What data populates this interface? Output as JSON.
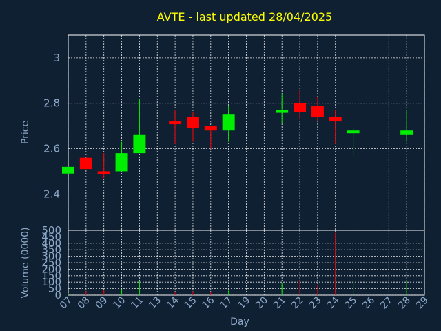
{
  "chart_data": {
    "type": "candlestick",
    "title": "AVTE - last updated 28/04/2025",
    "xlabel": "Day",
    "ylabel_price": "Price",
    "ylabel_volume": "Volume (0000)",
    "x_ticks": [
      "07",
      "08",
      "09",
      "10",
      "11",
      "13",
      "14",
      "15",
      "16",
      "17",
      "19",
      "20",
      "21",
      "22",
      "23",
      "24",
      "25",
      "26",
      "27",
      "28",
      "29"
    ],
    "price_ylim": [
      2.24,
      3.1
    ],
    "price_ticks": [
      2.4,
      2.6,
      2.8,
      3
    ],
    "volume_ylim": [
      0,
      500
    ],
    "volume_ticks": [
      0,
      50,
      100,
      150,
      200,
      250,
      300,
      350,
      400,
      450,
      500
    ],
    "colors": {
      "up": "#00ee00",
      "down": "#ff0000",
      "background": "#0f2033",
      "frame": "#ffffff",
      "title": "#ffff00",
      "label": "#8ea8c8"
    },
    "candles": [
      {
        "day": "07",
        "open": 2.49,
        "high": 2.52,
        "low": 2.49,
        "close": 2.52,
        "volume": 15
      },
      {
        "day": "08",
        "open": 2.56,
        "high": 2.56,
        "low": 2.51,
        "close": 2.51,
        "volume": 30
      },
      {
        "day": "09",
        "open": 2.5,
        "high": 2.58,
        "low": 2.47,
        "close": 2.49,
        "volume": 40
      },
      {
        "day": "10",
        "open": 2.5,
        "high": 2.63,
        "low": 2.5,
        "close": 2.58,
        "volume": 45
      },
      {
        "day": "11",
        "open": 2.58,
        "high": 2.82,
        "low": 2.58,
        "close": 2.66,
        "volume": 110
      },
      {
        "day": "14",
        "open": 2.72,
        "high": 2.77,
        "low": 2.62,
        "close": 2.71,
        "volume": 20
      },
      {
        "day": "15",
        "open": 2.74,
        "high": 2.76,
        "low": 2.63,
        "close": 2.69,
        "volume": 30
      },
      {
        "day": "16",
        "open": 2.7,
        "high": 2.7,
        "low": 2.6,
        "close": 2.68,
        "volume": 25
      },
      {
        "day": "17",
        "open": 2.68,
        "high": 2.79,
        "low": 2.63,
        "close": 2.75,
        "volume": 35
      },
      {
        "day": "21",
        "open": 2.76,
        "high": 2.84,
        "low": 2.71,
        "close": 2.77,
        "volume": 95
      },
      {
        "day": "22",
        "open": 2.8,
        "high": 2.86,
        "low": 2.73,
        "close": 2.76,
        "volume": 115
      },
      {
        "day": "23",
        "open": 2.79,
        "high": 2.83,
        "low": 2.72,
        "close": 2.74,
        "volume": 80
      },
      {
        "day": "24",
        "open": 2.74,
        "high": 2.77,
        "low": 2.62,
        "close": 2.72,
        "volume": 480
      },
      {
        "day": "25",
        "open": 2.67,
        "high": 2.69,
        "low": 2.57,
        "close": 2.68,
        "volume": 115
      },
      {
        "day": "28",
        "open": 2.66,
        "high": 2.77,
        "low": 2.63,
        "close": 2.68,
        "volume": 110
      }
    ]
  }
}
